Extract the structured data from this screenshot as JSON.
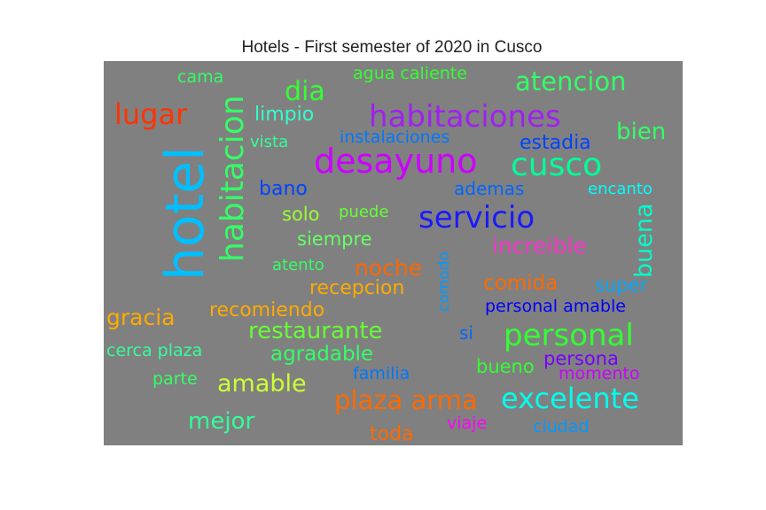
{
  "chart_data": {
    "type": "wordcloud",
    "title": "Hotels - First semester of 2020 in Cusco",
    "background": "#808080",
    "words": [
      {
        "text": "hotel",
        "color": "#00bfff"
      },
      {
        "text": "habitacion",
        "color": "#33ff66"
      },
      {
        "text": "desayuno",
        "color": "#cc00ff"
      },
      {
        "text": "habitaciones",
        "color": "#a020f0"
      },
      {
        "text": "cusco",
        "color": "#00ff99"
      },
      {
        "text": "servicio",
        "color": "#1a1aff"
      },
      {
        "text": "personal",
        "color": "#33ff33"
      },
      {
        "text": "excelente",
        "color": "#00ffee"
      },
      {
        "text": "plaza arma",
        "color": "#ff6a00"
      },
      {
        "text": "lugar",
        "color": "#ff3300"
      },
      {
        "text": "dia",
        "color": "#33ff33"
      },
      {
        "text": "atencion",
        "color": "#33ff66"
      },
      {
        "text": "restaurante",
        "color": "#66ff33"
      },
      {
        "text": "amable",
        "color": "#ccff33"
      },
      {
        "text": "buena",
        "color": "#00ffcc"
      },
      {
        "text": "bien",
        "color": "#33ff66"
      },
      {
        "text": "increible",
        "color": "#ff33cc"
      },
      {
        "text": "mejor",
        "color": "#33ff99"
      },
      {
        "text": "gracia",
        "color": "#ffaa00"
      },
      {
        "text": "noche",
        "color": "#ff6600"
      },
      {
        "text": "estadia",
        "color": "#0044ff"
      },
      {
        "text": "comida",
        "color": "#ff6a00"
      },
      {
        "text": "recepcion",
        "color": "#ffaa00"
      },
      {
        "text": "recomiendo",
        "color": "#ffaa00"
      },
      {
        "text": "agradable",
        "color": "#33ff66"
      },
      {
        "text": "limpio",
        "color": "#33ffcc"
      },
      {
        "text": "siempre",
        "color": "#66ff66"
      },
      {
        "text": "solo",
        "color": "#99ff33"
      },
      {
        "text": "bano",
        "color": "#0044ff"
      },
      {
        "text": "toda",
        "color": "#ff6a00"
      },
      {
        "text": "bueno",
        "color": "#33ff33"
      },
      {
        "text": "persona",
        "color": "#7700ff"
      },
      {
        "text": "ademas",
        "color": "#0066ff"
      },
      {
        "text": "super",
        "color": "#00aaff"
      },
      {
        "text": "instalaciones",
        "color": "#0077ff"
      },
      {
        "text": "agua caliente",
        "color": "#33ff33"
      },
      {
        "text": "cama",
        "color": "#33ff66"
      },
      {
        "text": "encanto",
        "color": "#00ffff"
      },
      {
        "text": "puede",
        "color": "#66ff33"
      },
      {
        "text": "vista",
        "color": "#33ff99"
      },
      {
        "text": "atento",
        "color": "#33ff66"
      },
      {
        "text": "comodo",
        "color": "#0099ff"
      },
      {
        "text": "personal amable",
        "color": "#0000ff"
      },
      {
        "text": "si",
        "color": "#0066ff"
      },
      {
        "text": "cerca plaza",
        "color": "#33ff99"
      },
      {
        "text": "familia",
        "color": "#0077ff"
      },
      {
        "text": "momento",
        "color": "#cc00ff"
      },
      {
        "text": "parte",
        "color": "#33ff66"
      },
      {
        "text": "viaje",
        "color": "#ff00ff"
      },
      {
        "text": "ciudad",
        "color": "#0099ff"
      }
    ]
  }
}
